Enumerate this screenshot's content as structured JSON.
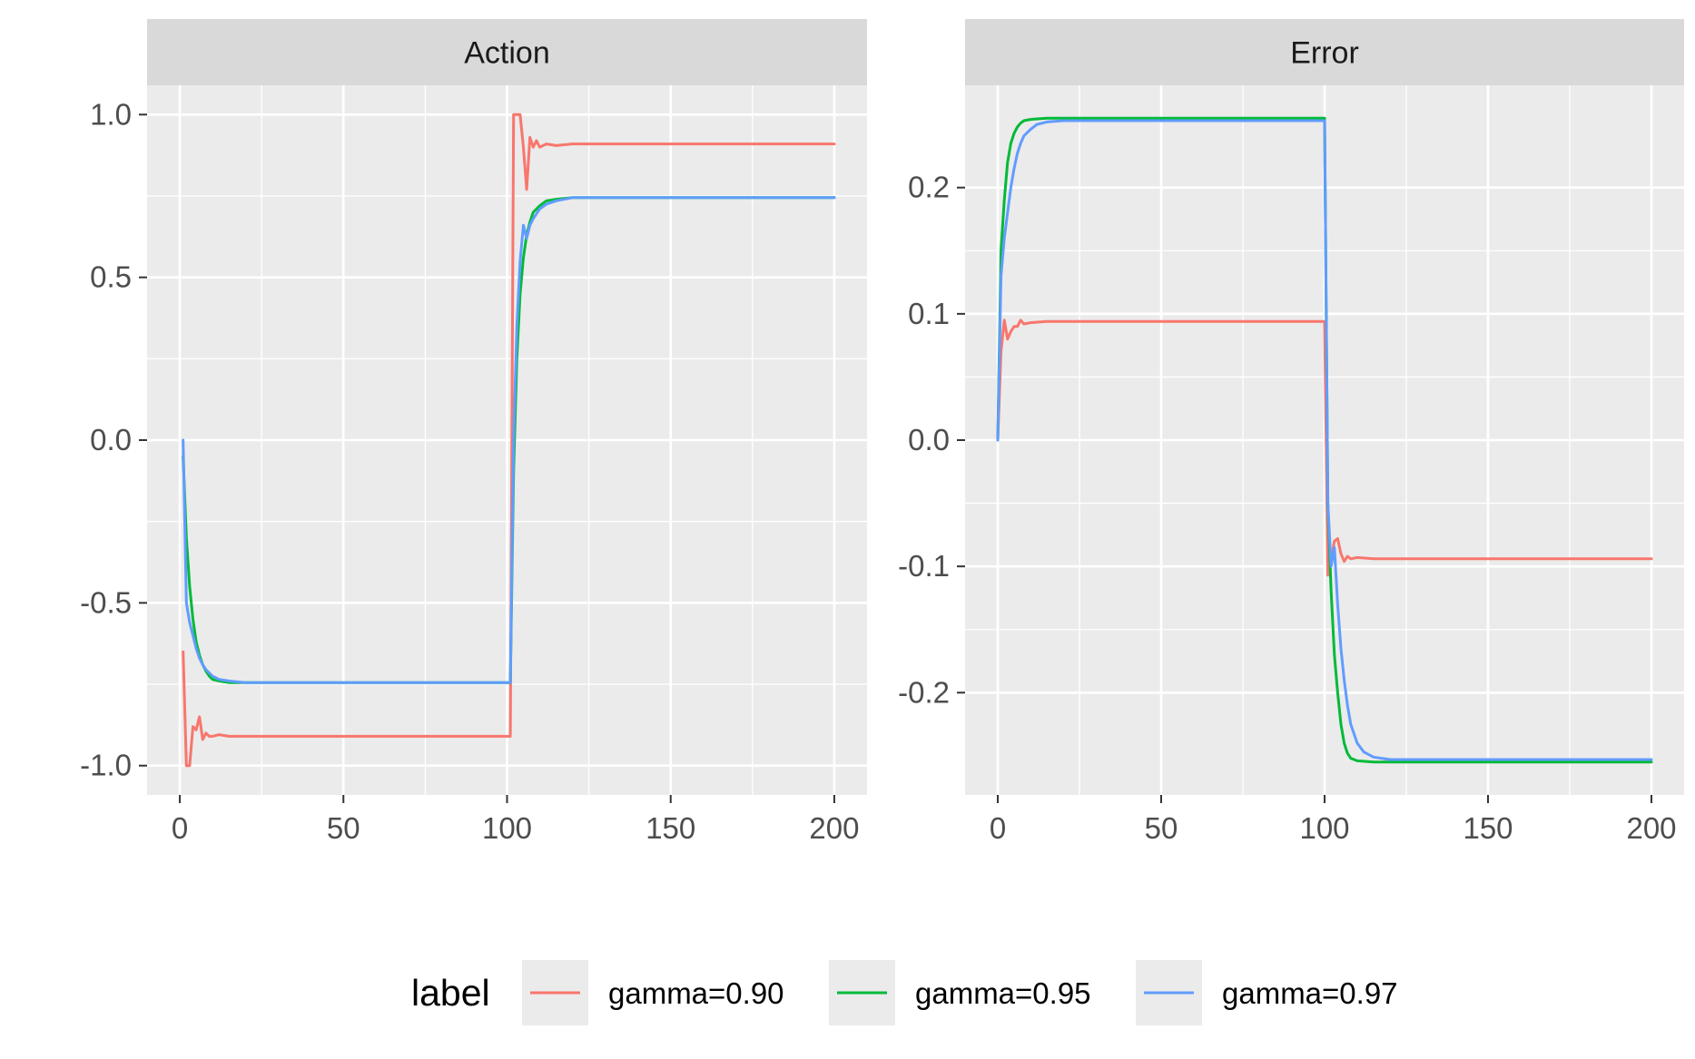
{
  "chart_data": {
    "type": "line",
    "legend": {
      "title": "label",
      "position": "bottom"
    },
    "series_names": [
      "gamma=0.90",
      "gamma=0.95",
      "gamma=0.97"
    ],
    "colors": {
      "gamma=0.90": "#F8766D",
      "gamma=0.95": "#00BA38",
      "gamma=0.97": "#619CFF"
    },
    "panel_background": "#EBEBEB",
    "strip_background": "#D9D9D9",
    "grid": true,
    "panels": [
      {
        "title": "Action",
        "xlim": [
          -10,
          210
        ],
        "ylim": [
          -1.09,
          1.09
        ],
        "x_ticks": [
          0,
          50,
          100,
          150,
          200
        ],
        "y_ticks": [
          -1.0,
          -0.5,
          0.0,
          0.5,
          1.0
        ],
        "x_tick_labels": [
          "0",
          "50",
          "100",
          "150",
          "200"
        ],
        "y_tick_labels": [
          "-1.0",
          "-0.5",
          "0.0",
          "0.5",
          "1.0"
        ],
        "series": [
          {
            "name": "gamma=0.90",
            "points": [
              [
                1,
                -0.65
              ],
              [
                2,
                -1.0
              ],
              [
                3,
                -1.0
              ],
              [
                4,
                -0.88
              ],
              [
                5,
                -0.89
              ],
              [
                6,
                -0.85
              ],
              [
                7,
                -0.92
              ],
              [
                8,
                -0.9
              ],
              [
                9,
                -0.91
              ],
              [
                10,
                -0.91
              ],
              [
                12,
                -0.905
              ],
              [
                15,
                -0.91
              ],
              [
                20,
                -0.91
              ],
              [
                50,
                -0.91
              ],
              [
                100,
                -0.91
              ],
              [
                101,
                -0.91
              ],
              [
                102,
                1.0
              ],
              [
                104,
                1.0
              ],
              [
                105,
                0.9
              ],
              [
                106,
                0.77
              ],
              [
                107,
                0.93
              ],
              [
                108,
                0.9
              ],
              [
                109,
                0.92
              ],
              [
                110,
                0.9
              ],
              [
                112,
                0.91
              ],
              [
                115,
                0.905
              ],
              [
                120,
                0.91
              ],
              [
                150,
                0.91
              ],
              [
                200,
                0.91
              ]
            ]
          },
          {
            "name": "gamma=0.95",
            "points": [
              [
                1,
                -0.05
              ],
              [
                2,
                -0.3
              ],
              [
                3,
                -0.45
              ],
              [
                4,
                -0.55
              ],
              [
                5,
                -0.62
              ],
              [
                6,
                -0.66
              ],
              [
                7,
                -0.69
              ],
              [
                8,
                -0.71
              ],
              [
                9,
                -0.725
              ],
              [
                10,
                -0.735
              ],
              [
                12,
                -0.74
              ],
              [
                15,
                -0.745
              ],
              [
                20,
                -0.745
              ],
              [
                50,
                -0.745
              ],
              [
                100,
                -0.745
              ],
              [
                101,
                -0.745
              ],
              [
                102,
                -0.1
              ],
              [
                103,
                0.25
              ],
              [
                104,
                0.45
              ],
              [
                105,
                0.56
              ],
              [
                106,
                0.63
              ],
              [
                107,
                0.67
              ],
              [
                108,
                0.7
              ],
              [
                110,
                0.72
              ],
              [
                112,
                0.735
              ],
              [
                115,
                0.74
              ],
              [
                120,
                0.745
              ],
              [
                150,
                0.745
              ],
              [
                200,
                0.745
              ]
            ]
          },
          {
            "name": "gamma=0.97",
            "points": [
              [
                1,
                0.0
              ],
              [
                2,
                -0.5
              ],
              [
                3,
                -0.56
              ],
              [
                4,
                -0.6
              ],
              [
                5,
                -0.64
              ],
              [
                6,
                -0.67
              ],
              [
                7,
                -0.69
              ],
              [
                8,
                -0.705
              ],
              [
                9,
                -0.715
              ],
              [
                10,
                -0.725
              ],
              [
                12,
                -0.735
              ],
              [
                15,
                -0.74
              ],
              [
                20,
                -0.745
              ],
              [
                50,
                -0.745
              ],
              [
                100,
                -0.745
              ],
              [
                101,
                -0.745
              ],
              [
                102,
                0.0
              ],
              [
                103,
                0.35
              ],
              [
                104,
                0.55
              ],
              [
                105,
                0.66
              ],
              [
                106,
                0.62
              ],
              [
                107,
                0.66
              ],
              [
                108,
                0.68
              ],
              [
                110,
                0.71
              ],
              [
                112,
                0.725
              ],
              [
                115,
                0.735
              ],
              [
                120,
                0.745
              ],
              [
                150,
                0.745
              ],
              [
                200,
                0.745
              ]
            ]
          }
        ]
      },
      {
        "title": "Error",
        "xlim": [
          -10,
          210
        ],
        "ylim": [
          -0.281,
          0.281
        ],
        "x_ticks": [
          0,
          50,
          100,
          150,
          200
        ],
        "y_ticks": [
          -0.2,
          -0.1,
          0.0,
          0.1,
          0.2
        ],
        "x_tick_labels": [
          "0",
          "50",
          "100",
          "150",
          "200"
        ],
        "y_tick_labels": [
          "-0.2",
          "-0.1",
          "0.0",
          "0.1",
          "0.2"
        ],
        "series": [
          {
            "name": "gamma=0.90",
            "points": [
              [
                0,
                0.0
              ],
              [
                1,
                0.07
              ],
              [
                2,
                0.095
              ],
              [
                3,
                0.08
              ],
              [
                4,
                0.086
              ],
              [
                5,
                0.09
              ],
              [
                6,
                0.09
              ],
              [
                7,
                0.095
              ],
              [
                8,
                0.092
              ],
              [
                10,
                0.093
              ],
              [
                15,
                0.094
              ],
              [
                50,
                0.094
              ],
              [
                100,
                0.094
              ],
              [
                101,
                -0.107
              ],
              [
                102,
                -0.095
              ],
              [
                103,
                -0.08
              ],
              [
                104,
                -0.078
              ],
              [
                105,
                -0.09
              ],
              [
                106,
                -0.096
              ],
              [
                107,
                -0.092
              ],
              [
                108,
                -0.094
              ],
              [
                110,
                -0.093
              ],
              [
                115,
                -0.094
              ],
              [
                150,
                -0.094
              ],
              [
                200,
                -0.094
              ]
            ]
          },
          {
            "name": "gamma=0.95",
            "points": [
              [
                0,
                0.0
              ],
              [
                1,
                0.15
              ],
              [
                2,
                0.19
              ],
              [
                3,
                0.22
              ],
              [
                4,
                0.235
              ],
              [
                5,
                0.243
              ],
              [
                6,
                0.248
              ],
              [
                7,
                0.251
              ],
              [
                8,
                0.253
              ],
              [
                10,
                0.254
              ],
              [
                15,
                0.255
              ],
              [
                50,
                0.255
              ],
              [
                100,
                0.255
              ],
              [
                101,
                -0.05
              ],
              [
                102,
                -0.12
              ],
              [
                103,
                -0.17
              ],
              [
                104,
                -0.2
              ],
              [
                105,
                -0.225
              ],
              [
                106,
                -0.24
              ],
              [
                107,
                -0.248
              ],
              [
                108,
                -0.252
              ],
              [
                110,
                -0.254
              ],
              [
                115,
                -0.255
              ],
              [
                150,
                -0.255
              ],
              [
                200,
                -0.255
              ]
            ]
          },
          {
            "name": "gamma=0.97",
            "points": [
              [
                0,
                0.0
              ],
              [
                1,
                0.13
              ],
              [
                2,
                0.16
              ],
              [
                3,
                0.18
              ],
              [
                4,
                0.2
              ],
              [
                5,
                0.215
              ],
              [
                6,
                0.227
              ],
              [
                7,
                0.235
              ],
              [
                8,
                0.241
              ],
              [
                10,
                0.246
              ],
              [
                12,
                0.25
              ],
              [
                15,
                0.252
              ],
              [
                20,
                0.253
              ],
              [
                50,
                0.253
              ],
              [
                100,
                0.253
              ],
              [
                101,
                -0.05
              ],
              [
                102,
                -0.1
              ],
              [
                103,
                -0.085
              ],
              [
                104,
                -0.13
              ],
              [
                105,
                -0.165
              ],
              [
                106,
                -0.19
              ],
              [
                107,
                -0.21
              ],
              [
                108,
                -0.225
              ],
              [
                110,
                -0.24
              ],
              [
                112,
                -0.247
              ],
              [
                115,
                -0.251
              ],
              [
                120,
                -0.253
              ],
              [
                150,
                -0.253
              ],
              [
                200,
                -0.253
              ]
            ]
          }
        ]
      }
    ]
  }
}
